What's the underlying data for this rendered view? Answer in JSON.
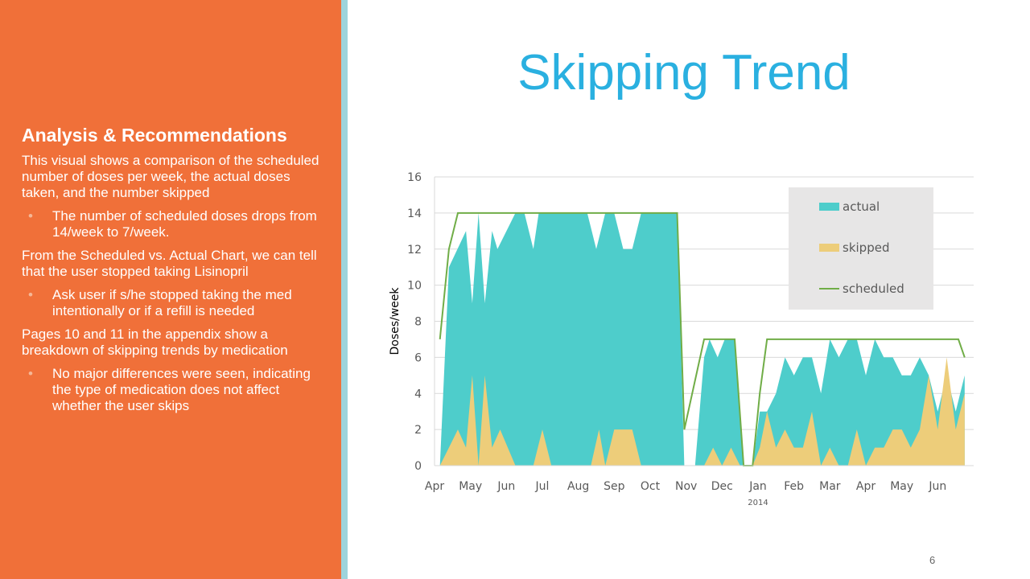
{
  "left": {
    "heading": "Analysis & Recommendations",
    "intro": "This visual shows a comparison of the scheduled number of doses per week, the actual doses taken, and the number skipped",
    "bullet1": "The number of scheduled doses drops from 14/week to 7/week.",
    "para2": "From the Scheduled vs. Actual Chart, we can tell that the user stopped taking Lisinopril",
    "bullet2": "Ask user if s/he stopped taking the med intentionally or if a refill is needed",
    "para3": "Pages 10 and 11 in the appendix show a breakdown of skipping trends by medication",
    "bullet3": "No major differences were seen, indicating the type of medication does not affect whether the user skips",
    "bullet_glyph": "•"
  },
  "title": "Skipping Trend",
  "page_number": "6",
  "colors": {
    "accent_orange": "#f07039",
    "stripe": "#9ed4dc",
    "title_blue": "#2ab0e0",
    "actual": "#4ecdcb",
    "skipped": "#edcd7a",
    "scheduled": "#70ad47"
  },
  "chart_data": {
    "type": "area",
    "title": "",
    "xlabel": "",
    "ylabel": "Doses/week",
    "ylim": [
      0,
      16
    ],
    "yticks": [
      "0",
      "2",
      "4",
      "6",
      "8",
      "10",
      "12",
      "14",
      "16"
    ],
    "xlim": [
      0,
      60
    ],
    "month_labels": [
      "Apr",
      "May",
      "Jun",
      "Jul",
      "Aug",
      "Sep",
      "Oct",
      "Nov",
      "Dec",
      "Jan",
      "Feb",
      "Mar",
      "Apr",
      "May",
      "Jun"
    ],
    "month_positions": [
      0,
      4,
      8,
      12,
      16,
      20,
      24,
      28,
      32,
      36,
      40,
      44,
      48,
      52,
      56
    ],
    "year_label": "2014",
    "year_label_position": 36,
    "legend": [
      "actual",
      "skipped",
      "scheduled"
    ],
    "legend_position": "top-right",
    "series": [
      {
        "name": "actual",
        "x": [
          0.6,
          1.6,
          3.5,
          4.2,
          4.9,
          5.6,
          6.4,
          7.0,
          9.0,
          10.0,
          11.0,
          11.6,
          13.0,
          14.0,
          17.0,
          18.0,
          19.0,
          20.0,
          21.0,
          22.0,
          23.0,
          24.0,
          27.0,
          27.8,
          29.0,
          30.0,
          30.6,
          31.5,
          32.3,
          33.4,
          34.4,
          35.4,
          36.2,
          37.0,
          38.0,
          39.0,
          40.0,
          41.0,
          42.0,
          43.0,
          44.0,
          45.0,
          46.0,
          47.0,
          48.0,
          49.0,
          50.0,
          51.0,
          52.0,
          53.0,
          54.0,
          55.0,
          56.0,
          57.0,
          58.0,
          59.0
        ],
        "values": [
          0,
          11,
          13,
          9,
          14,
          9,
          13,
          12,
          14,
          14,
          12,
          14,
          14,
          14,
          14,
          12,
          14,
          14,
          12,
          12,
          14,
          14,
          14,
          0,
          0,
          6,
          7,
          6,
          7,
          7,
          0,
          0,
          3,
          3,
          4,
          6,
          5,
          6,
          6,
          4,
          7,
          6,
          7,
          7,
          5,
          7,
          6,
          6,
          5,
          5,
          6,
          5,
          3,
          5,
          3,
          5
        ]
      },
      {
        "name": "skipped",
        "x": [
          0.6,
          1.6,
          2.6,
          3.5,
          4.2,
          4.9,
          5.6,
          6.4,
          7.3,
          9.0,
          11.0,
          12.0,
          13.0,
          17.4,
          18.3,
          19.0,
          20.0,
          21.0,
          22.0,
          23.0,
          30.0,
          31.0,
          32.0,
          33.0,
          34.0,
          35.4,
          36.2,
          37.0,
          38.0,
          39.0,
          40.0,
          41.0,
          42.0,
          43.0,
          44.0,
          45.0,
          46.0,
          47.0,
          48.0,
          49.0,
          50.0,
          51.0,
          52.0,
          53.0,
          54.0,
          55.0,
          56.0,
          57.0,
          58.0,
          59.0
        ],
        "values": [
          0,
          1,
          2,
          1,
          5,
          0,
          5,
          1,
          2,
          0,
          0,
          2,
          0,
          0,
          2,
          0,
          2,
          2,
          2,
          0,
          0,
          1,
          0,
          1,
          0,
          0,
          1,
          3,
          1,
          2,
          1,
          1,
          3,
          0,
          1,
          0,
          0,
          2,
          0,
          1,
          1,
          2,
          2,
          1,
          2,
          5,
          2,
          6,
          2,
          4
        ]
      },
      {
        "name": "scheduled",
        "x": [
          0.6,
          1.6,
          2.6,
          27.0,
          27.8,
          30.0,
          33.4,
          34.4,
          35.4,
          36.2,
          37.0,
          58.3,
          59.0
        ],
        "values": [
          7,
          12,
          14,
          14,
          2,
          7,
          7,
          0,
          0,
          4,
          7,
          7,
          6
        ]
      }
    ]
  }
}
